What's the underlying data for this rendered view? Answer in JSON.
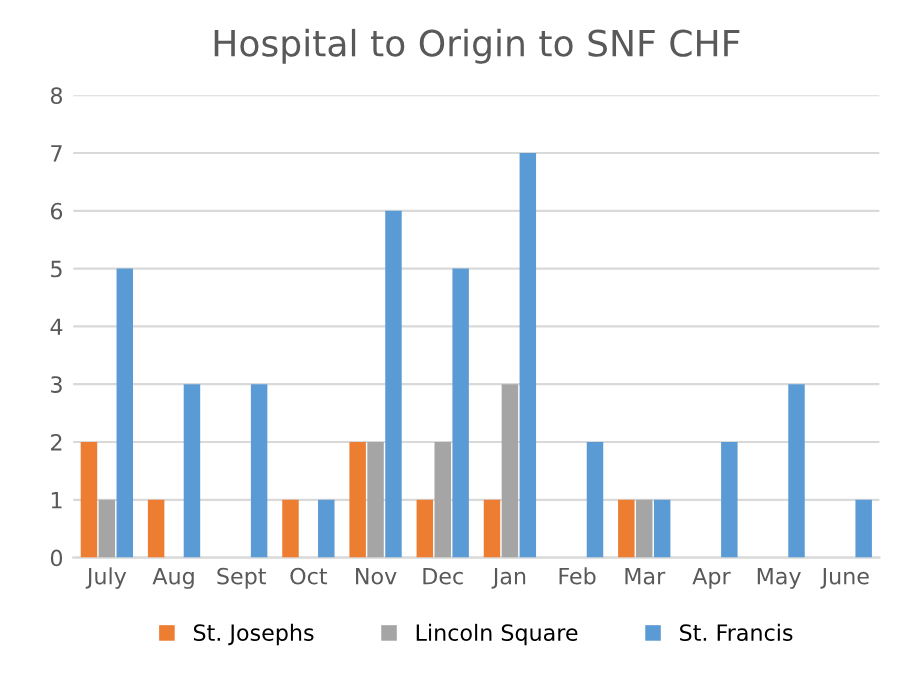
{
  "chart_data": {
    "type": "bar",
    "title": "Hospital to Origin to SNF CHF",
    "categories": [
      "July",
      "Aug",
      "Sept",
      "Oct",
      "Nov",
      "Dec",
      "Jan",
      "Feb",
      "Mar",
      "Apr",
      "May",
      "June"
    ],
    "series": [
      {
        "name": "St. Josephs",
        "color": "#ed7d31",
        "values": [
          2,
          1,
          0,
          1,
          2,
          1,
          1,
          0,
          1,
          0,
          0,
          0
        ]
      },
      {
        "name": "Lincoln Square",
        "color": "#a5a5a5",
        "values": [
          1,
          0,
          0,
          0,
          2,
          2,
          3,
          0,
          1,
          0,
          0,
          0
        ]
      },
      {
        "name": "St. Francis",
        "color": "#5b9bd5",
        "values": [
          5,
          3,
          3,
          1,
          6,
          5,
          7,
          2,
          1,
          2,
          3,
          1
        ]
      }
    ],
    "ylim": [
      0,
      8
    ],
    "yticks": [
      0,
      1,
      2,
      3,
      4,
      5,
      6,
      7,
      8
    ],
    "grid": "y",
    "legend": "bottom"
  }
}
